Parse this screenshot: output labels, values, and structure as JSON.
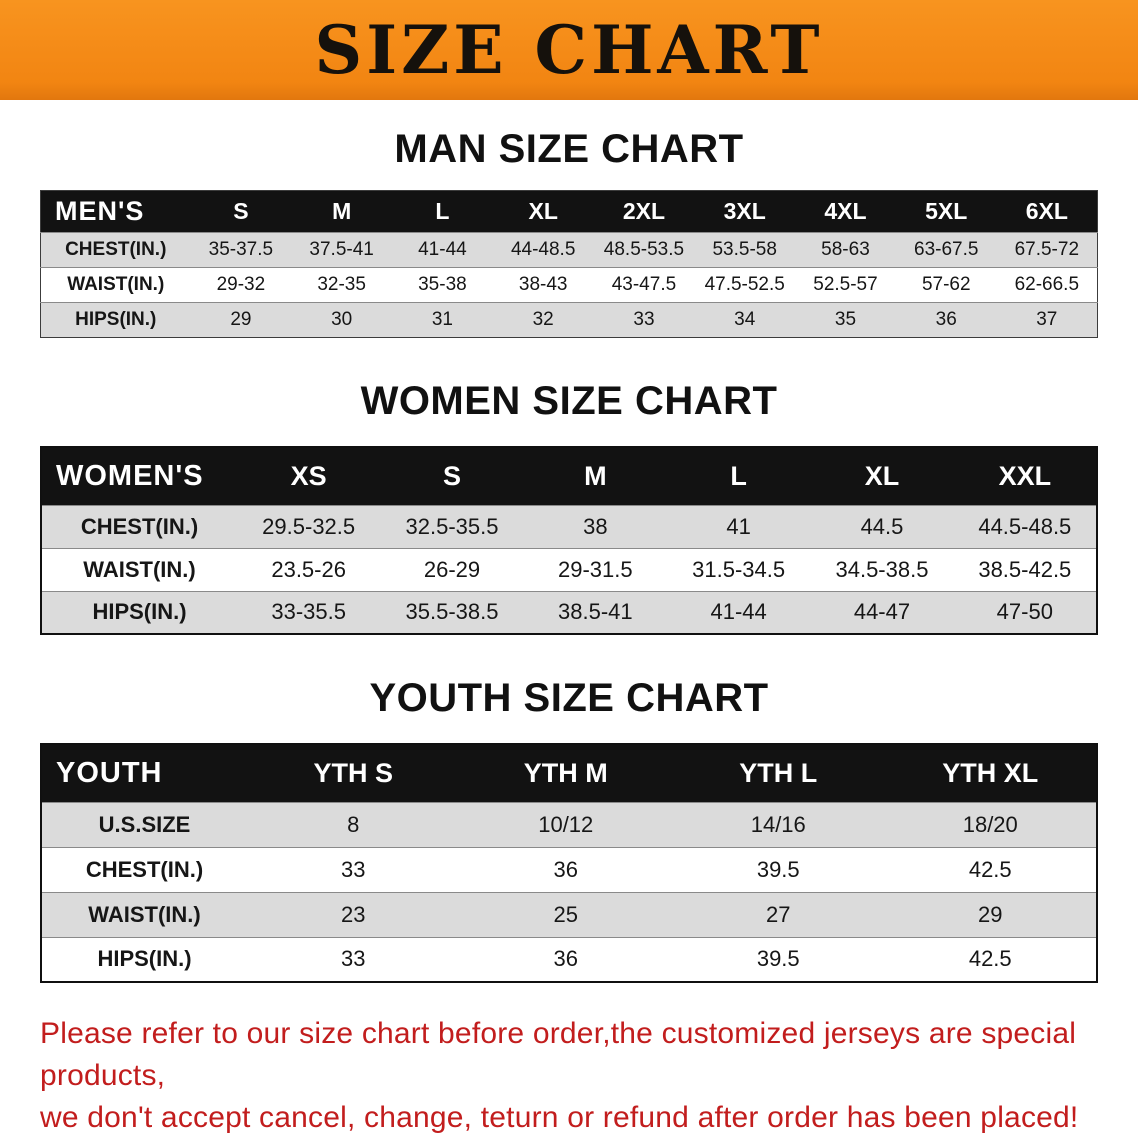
{
  "banner": {
    "title": "SIZE CHART",
    "background_color": "#F28512",
    "text_color": "#15110C"
  },
  "chart_data": [
    {
      "type": "table",
      "title": "MAN SIZE CHART",
      "header": [
        "MEN'S",
        "S",
        "M",
        "L",
        "XL",
        "2XL",
        "3XL",
        "4XL",
        "5XL",
        "6XL"
      ],
      "rows": [
        [
          "CHEST(IN.)",
          "35-37.5",
          "37.5-41",
          "41-44",
          "44-48.5",
          "48.5-53.5",
          "53.5-58",
          "58-63",
          "63-67.5",
          "67.5-72"
        ],
        [
          "WAIST(IN.)",
          "29-32",
          "32-35",
          "35-38",
          "38-43",
          "43-47.5",
          "47.5-52.5",
          "52.5-57",
          "57-62",
          "62-66.5"
        ],
        [
          "HIPS(IN.)",
          "29",
          "30",
          "31",
          "32",
          "33",
          "34",
          "35",
          "36",
          "37"
        ]
      ]
    },
    {
      "type": "table",
      "title": "WOMEN SIZE CHART",
      "header": [
        "WOMEN'S",
        "XS",
        "S",
        "M",
        "L",
        "XL",
        "XXL"
      ],
      "rows": [
        [
          "CHEST(IN.)",
          "29.5-32.5",
          "32.5-35.5",
          "38",
          "41",
          "44.5",
          "44.5-48.5"
        ],
        [
          "WAIST(IN.)",
          "23.5-26",
          "26-29",
          "29-31.5",
          "31.5-34.5",
          "34.5-38.5",
          "38.5-42.5"
        ],
        [
          "HIPS(IN.)",
          "33-35.5",
          "35.5-38.5",
          "38.5-41",
          "41-44",
          "44-47",
          "47-50"
        ]
      ]
    },
    {
      "type": "table",
      "title": "YOUTH SIZE CHART",
      "header": [
        "YOUTH",
        "YTH S",
        "YTH M",
        "YTH L",
        "YTH XL"
      ],
      "rows": [
        [
          "U.S.SIZE",
          "8",
          "10/12",
          "14/16",
          "18/20"
        ],
        [
          "CHEST(IN.)",
          "33",
          "36",
          "39.5",
          "42.5"
        ],
        [
          "WAIST(IN.)",
          "23",
          "25",
          "27",
          "29"
        ],
        [
          "HIPS(IN.)",
          "33",
          "36",
          "39.5",
          "42.5"
        ]
      ]
    }
  ],
  "footer_note": {
    "line1": "Please refer to our size chart before order,the customized jerseys are special products,",
    "line2": "we don't accept cancel, change, teturn or refund after order has been placed!",
    "color": "#C21D1D"
  }
}
